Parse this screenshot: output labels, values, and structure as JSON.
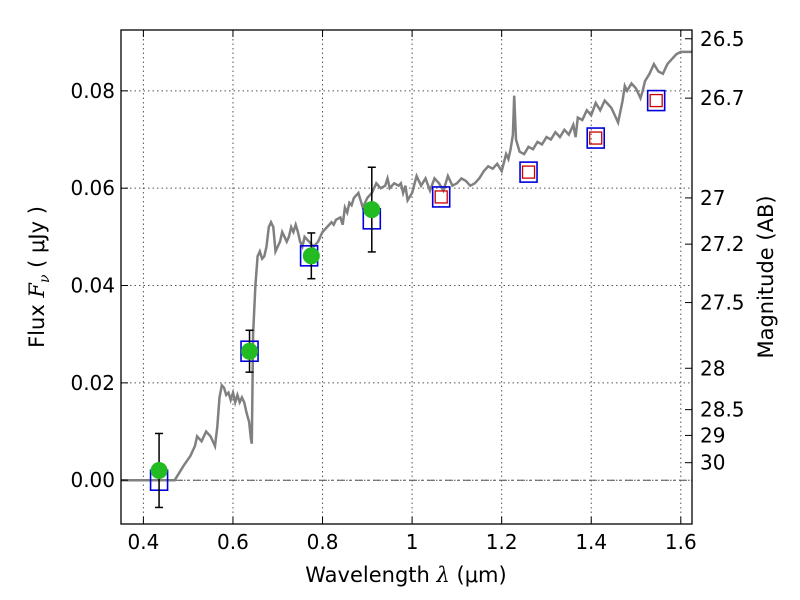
{
  "chart_data": {
    "type": "line",
    "xlabel": {
      "prefix": "Wavelength  ",
      "symbol": "λ",
      "unit": " (μm)"
    },
    "ylabel": {
      "prefix": "Flux  ",
      "symbol": "F",
      "subscript": "ν",
      "unit": "  ( μJy )"
    },
    "y2label": "Magnitude (AB)",
    "xlim": [
      0.35,
      1.625
    ],
    "ylim": [
      -0.009,
      0.0925
    ],
    "grid": true,
    "x_ticks": [
      0.4,
      0.6,
      0.8,
      1.0,
      1.2,
      1.4,
      1.6
    ],
    "x_tick_labels": [
      "0.4",
      "0.6",
      "0.8",
      "1",
      "1.2",
      "1.4",
      "1.6"
    ],
    "y_ticks": [
      0.0,
      0.02,
      0.04,
      0.06,
      0.08
    ],
    "y_tick_labels": [
      "0.00",
      "0.02",
      "0.04",
      "0.06",
      "0.08"
    ],
    "y2_ticks": [
      {
        "label": "26.5",
        "flux": 0.0907
      },
      {
        "label": "26.7",
        "flux": 0.0785
      },
      {
        "label": "27",
        "flux": 0.058
      },
      {
        "label": "27.2",
        "flux": 0.0485
      },
      {
        "label": "27.5",
        "flux": 0.0365
      },
      {
        "label": "28",
        "flux": 0.023
      },
      {
        "label": "28.5",
        "flux": 0.0145
      },
      {
        "label": "29",
        "flux": 0.0092
      },
      {
        "label": "30",
        "flux": 0.0036
      }
    ],
    "colors": {
      "sed": "#808080",
      "observed": "#22bb22",
      "model_box": "#0000dd",
      "model_inner": "#cc0000",
      "errorbar": "#000000",
      "zero_line": "#555555",
      "grid": "#555555"
    },
    "series": [
      {
        "type": "line",
        "points": [
          [
            0.35,
            0.0
          ],
          [
            0.47,
            0.0
          ],
          [
            0.49,
            0.003
          ],
          [
            0.505,
            0.005
          ],
          [
            0.515,
            0.007
          ],
          [
            0.52,
            0.009
          ],
          [
            0.53,
            0.008
          ],
          [
            0.54,
            0.01
          ],
          [
            0.55,
            0.009
          ],
          [
            0.56,
            0.007
          ],
          [
            0.565,
            0.011
          ],
          [
            0.57,
            0.017
          ],
          [
            0.575,
            0.0195
          ],
          [
            0.58,
            0.019
          ],
          [
            0.585,
            0.0175
          ],
          [
            0.59,
            0.018
          ],
          [
            0.595,
            0.0165
          ],
          [
            0.6,
            0.018
          ],
          [
            0.605,
            0.016
          ],
          [
            0.61,
            0.0175
          ],
          [
            0.615,
            0.016
          ],
          [
            0.62,
            0.017
          ],
          [
            0.625,
            0.016
          ],
          [
            0.63,
            0.014
          ],
          [
            0.633,
            0.013
          ],
          [
            0.636,
            0.012
          ],
          [
            0.64,
            0.0085
          ],
          [
            0.642,
            0.0075
          ],
          [
            0.645,
            0.03
          ],
          [
            0.65,
            0.04
          ],
          [
            0.655,
            0.046
          ],
          [
            0.66,
            0.047
          ],
          [
            0.665,
            0.0455
          ],
          [
            0.67,
            0.046
          ],
          [
            0.675,
            0.048
          ],
          [
            0.68,
            0.052
          ],
          [
            0.685,
            0.053
          ],
          [
            0.69,
            0.052
          ],
          [
            0.695,
            0.047
          ],
          [
            0.7,
            0.048
          ],
          [
            0.705,
            0.049
          ],
          [
            0.71,
            0.051
          ],
          [
            0.715,
            0.05
          ],
          [
            0.72,
            0.049
          ],
          [
            0.725,
            0.05
          ],
          [
            0.73,
            0.052
          ],
          [
            0.735,
            0.051
          ],
          [
            0.74,
            0.0525
          ],
          [
            0.745,
            0.051
          ],
          [
            0.75,
            0.049
          ],
          [
            0.755,
            0.048
          ],
          [
            0.76,
            0.05
          ],
          [
            0.77,
            0.049
          ],
          [
            0.78,
            0.048
          ],
          [
            0.79,
            0.049
          ],
          [
            0.8,
            0.051
          ],
          [
            0.81,
            0.052
          ],
          [
            0.82,
            0.053
          ],
          [
            0.825,
            0.0525
          ],
          [
            0.83,
            0.0535
          ],
          [
            0.84,
            0.054
          ],
          [
            0.845,
            0.0525
          ],
          [
            0.85,
            0.056
          ],
          [
            0.855,
            0.055
          ],
          [
            0.86,
            0.057
          ],
          [
            0.865,
            0.0565
          ],
          [
            0.87,
            0.058
          ],
          [
            0.88,
            0.059
          ],
          [
            0.885,
            0.0575
          ],
          [
            0.89,
            0.056
          ],
          [
            0.9,
            0.058
          ],
          [
            0.91,
            0.059
          ],
          [
            0.92,
            0.061
          ],
          [
            0.93,
            0.06
          ],
          [
            0.94,
            0.0605
          ],
          [
            0.945,
            0.062
          ],
          [
            0.95,
            0.06
          ],
          [
            0.96,
            0.061
          ],
          [
            0.97,
            0.0605
          ],
          [
            0.975,
            0.061
          ],
          [
            0.98,
            0.059
          ],
          [
            0.985,
            0.0605
          ],
          [
            0.99,
            0.0575
          ],
          [
            1.0,
            0.059
          ],
          [
            1.01,
            0.0625
          ],
          [
            1.02,
            0.0605
          ],
          [
            1.03,
            0.062
          ],
          [
            1.04,
            0.0595
          ],
          [
            1.05,
            0.062
          ],
          [
            1.06,
            0.061
          ],
          [
            1.07,
            0.0595
          ],
          [
            1.08,
            0.0625
          ],
          [
            1.09,
            0.0605
          ],
          [
            1.1,
            0.061
          ],
          [
            1.11,
            0.062
          ],
          [
            1.12,
            0.0615
          ],
          [
            1.13,
            0.0605
          ],
          [
            1.14,
            0.061
          ],
          [
            1.15,
            0.062
          ],
          [
            1.16,
            0.0635
          ],
          [
            1.17,
            0.0645
          ],
          [
            1.18,
            0.064
          ],
          [
            1.19,
            0.065
          ],
          [
            1.2,
            0.0635
          ],
          [
            1.21,
            0.067
          ],
          [
            1.215,
            0.066
          ],
          [
            1.22,
            0.068
          ],
          [
            1.225,
            0.071
          ],
          [
            1.228,
            0.079
          ],
          [
            1.232,
            0.07
          ],
          [
            1.24,
            0.0675
          ],
          [
            1.25,
            0.067
          ],
          [
            1.26,
            0.0685
          ],
          [
            1.27,
            0.068
          ],
          [
            1.28,
            0.0695
          ],
          [
            1.29,
            0.069
          ],
          [
            1.3,
            0.0705
          ],
          [
            1.31,
            0.07
          ],
          [
            1.32,
            0.0715
          ],
          [
            1.33,
            0.0705
          ],
          [
            1.34,
            0.072
          ],
          [
            1.35,
            0.071
          ],
          [
            1.36,
            0.073
          ],
          [
            1.365,
            0.0705
          ],
          [
            1.37,
            0.0745
          ],
          [
            1.38,
            0.074
          ],
          [
            1.39,
            0.076
          ],
          [
            1.4,
            0.075
          ],
          [
            1.41,
            0.0775
          ],
          [
            1.42,
            0.076
          ],
          [
            1.43,
            0.078
          ],
          [
            1.44,
            0.077
          ],
          [
            1.445,
            0.0765
          ],
          [
            1.45,
            0.0755
          ],
          [
            1.46,
            0.0735
          ],
          [
            1.47,
            0.078
          ],
          [
            1.475,
            0.081
          ],
          [
            1.48,
            0.08
          ],
          [
            1.49,
            0.0815
          ],
          [
            1.5,
            0.0805
          ],
          [
            1.51,
            0.0785
          ],
          [
            1.515,
            0.08
          ],
          [
            1.52,
            0.082
          ],
          [
            1.53,
            0.0835
          ],
          [
            1.54,
            0.0855
          ],
          [
            1.55,
            0.084
          ],
          [
            1.56,
            0.0835
          ],
          [
            1.57,
            0.0855
          ],
          [
            1.58,
            0.0865
          ],
          [
            1.59,
            0.0875
          ],
          [
            1.6,
            0.088
          ],
          [
            1.61,
            0.088
          ],
          [
            1.625,
            0.088
          ]
        ]
      },
      {
        "type": "scatter",
        "points": [
          [
            0.435,
            0.002
          ],
          [
            0.637,
            0.0265
          ],
          [
            0.775,
            0.0461
          ],
          [
            0.91,
            0.0556
          ]
        ],
        "yerr": [
          0.0076,
          0.0043,
          0.0047,
          0.0087
        ]
      },
      {
        "type": "scatter",
        "points": [
          [
            0.435,
            0.0
          ],
          [
            0.637,
            0.0265
          ],
          [
            0.77,
            0.0461
          ],
          [
            0.91,
            0.0537
          ],
          [
            1.065,
            0.0582
          ],
          [
            1.26,
            0.0633
          ],
          [
            1.41,
            0.0703
          ],
          [
            1.545,
            0.078
          ]
        ]
      },
      {
        "type": "scatter",
        "points": [
          [
            1.065,
            0.0582
          ],
          [
            1.26,
            0.0633
          ],
          [
            1.41,
            0.0703
          ],
          [
            1.545,
            0.078
          ]
        ]
      }
    ]
  }
}
